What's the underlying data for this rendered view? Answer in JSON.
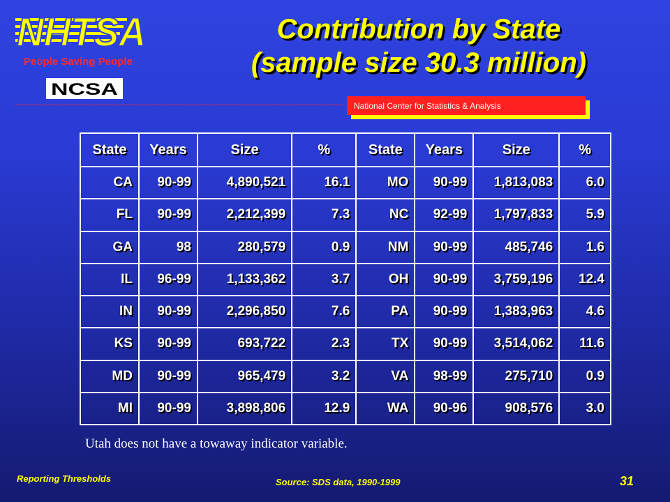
{
  "header": {
    "logo_text": "NHTSA",
    "tagline": "People Saving People",
    "ncsa_logo_text": "NCSA",
    "title_line1": "Contribution by State",
    "title_line2": "(sample size 30.3 million)",
    "ncsa_label": "National Center for Statistics & Analysis"
  },
  "table": {
    "headers": [
      "State",
      "Years",
      "Size",
      "%",
      "State",
      "Years",
      "Size",
      "%"
    ],
    "rows": [
      [
        "CA",
        "90-99",
        "4,890,521",
        "16.1",
        "MO",
        "90-99",
        "1,813,083",
        "6.0"
      ],
      [
        "FL",
        "90-99",
        "2,212,399",
        "7.3",
        "NC",
        "92-99",
        "1,797,833",
        "5.9"
      ],
      [
        "GA",
        "98",
        "280,579",
        "0.9",
        "NM",
        "90-99",
        "485,746",
        "1.6"
      ],
      [
        "IL",
        "96-99",
        "1,133,362",
        "3.7",
        "OH",
        "90-99",
        "3,759,196",
        "12.4"
      ],
      [
        "IN",
        "90-99",
        "2,296,850",
        "7.6",
        "PA",
        "90-99",
        "1,383,963",
        "4.6"
      ],
      [
        "KS",
        "90-99",
        "693,722",
        "2.3",
        "TX",
        "90-99",
        "3,514,062",
        "11.6"
      ],
      [
        "MD",
        "90-99",
        "965,479",
        "3.2",
        "VA",
        "98-99",
        "275,710",
        "0.9"
      ],
      [
        "MI",
        "90-99",
        "3,898,806",
        "12.9",
        "WA",
        "90-96",
        "908,576",
        "3.0"
      ]
    ]
  },
  "note": "Utah does not have a towaway indicator variable.",
  "footer": {
    "left": "Reporting Thresholds",
    "source": "Source: SDS data, 1990-1999",
    "page_number": "31"
  },
  "colors": {
    "accent_yellow": "#ffff00",
    "accent_red": "#ff2020",
    "background_top": "#2f43e0",
    "background_bottom": "#141a70"
  }
}
